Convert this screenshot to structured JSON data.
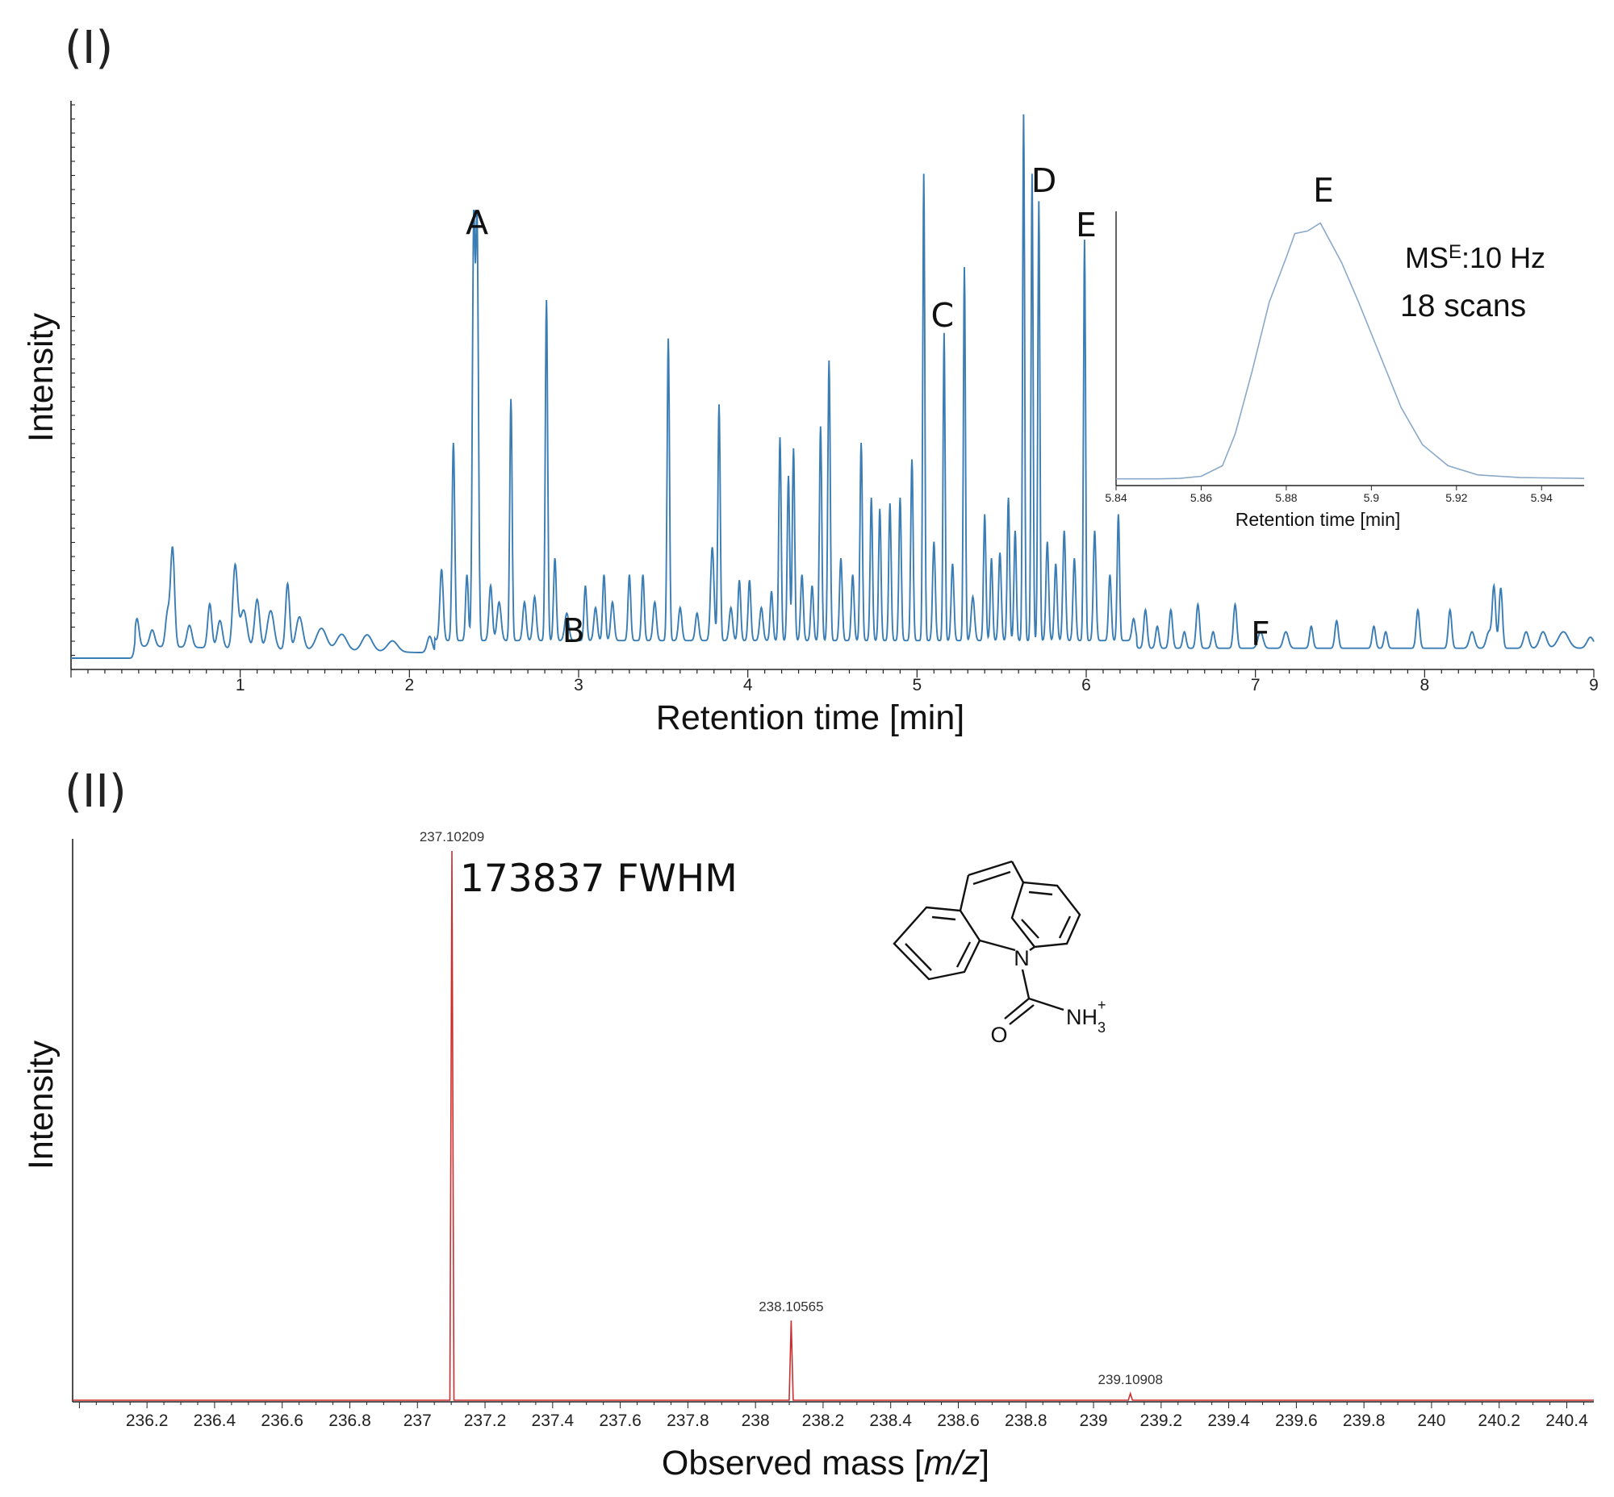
{
  "colors": {
    "chromatogram": "#3a7db5",
    "inset": "#8aa9c8",
    "spectrum": "#cc2e2e",
    "axis": "#222222"
  },
  "panel_1": {
    "label": "(I)"
  },
  "panel_2": {
    "label": "(II)"
  },
  "chart_data": [
    {
      "type": "line",
      "ylabel": "Intensity",
      "xlabel": "Retention time [min]",
      "xlim": [
        0,
        9
      ],
      "ylim": [
        0,
        100
      ],
      "x_ticks": [
        "1",
        "2",
        "3",
        "4",
        "5",
        "6",
        "7",
        "8",
        "9"
      ],
      "peak_labels": [
        {
          "text": "A",
          "x": 2.4
        },
        {
          "text": "B",
          "x": 2.97
        },
        {
          "text": "C",
          "x": 5.15
        },
        {
          "text": "D",
          "x": 5.75
        },
        {
          "text": "E",
          "x": 6.0
        },
        {
          "text": "F",
          "x": 7.03
        }
      ],
      "peaks": [
        [
          0.39,
          5,
          0.012
        ],
        [
          0.48,
          3,
          0.015
        ],
        [
          0.57,
          6,
          0.012
        ],
        [
          0.6,
          18,
          0.012
        ],
        [
          0.7,
          4,
          0.015
        ],
        [
          0.82,
          8,
          0.012
        ],
        [
          0.88,
          5,
          0.015
        ],
        [
          0.97,
          15,
          0.014
        ],
        [
          1.02,
          7,
          0.02
        ],
        [
          1.1,
          9,
          0.015
        ],
        [
          1.18,
          7,
          0.02
        ],
        [
          1.28,
          12,
          0.012
        ],
        [
          1.35,
          6,
          0.02
        ],
        [
          1.48,
          4,
          0.03
        ],
        [
          1.6,
          3,
          0.03
        ],
        [
          1.75,
          3,
          0.03
        ],
        [
          1.9,
          2,
          0.03
        ],
        [
          2.12,
          3,
          0.015
        ],
        [
          2.19,
          13,
          0.01
        ],
        [
          2.26,
          36,
          0.008
        ],
        [
          2.34,
          12,
          0.008
        ],
        [
          2.38,
          75,
          0.008
        ],
        [
          2.4,
          75,
          0.008
        ],
        [
          2.48,
          10,
          0.01
        ],
        [
          2.53,
          7,
          0.012
        ],
        [
          2.6,
          44,
          0.007
        ],
        [
          2.68,
          7,
          0.01
        ],
        [
          2.74,
          8,
          0.01
        ],
        [
          2.81,
          62,
          0.007
        ],
        [
          2.86,
          15,
          0.008
        ],
        [
          2.93,
          5,
          0.012
        ],
        [
          3.04,
          10,
          0.008
        ],
        [
          3.1,
          6,
          0.01
        ],
        [
          3.15,
          12,
          0.008
        ],
        [
          3.2,
          7,
          0.01
        ],
        [
          3.3,
          12,
          0.008
        ],
        [
          3.38,
          12,
          0.008
        ],
        [
          3.45,
          7,
          0.01
        ],
        [
          3.53,
          55,
          0.007
        ],
        [
          3.6,
          6,
          0.01
        ],
        [
          3.7,
          5,
          0.01
        ],
        [
          3.79,
          17,
          0.01
        ],
        [
          3.83,
          43,
          0.007
        ],
        [
          3.9,
          6,
          0.01
        ],
        [
          3.95,
          11,
          0.008
        ],
        [
          4.01,
          11,
          0.008
        ],
        [
          4.08,
          6,
          0.01
        ],
        [
          4.14,
          9,
          0.008
        ],
        [
          4.19,
          37,
          0.007
        ],
        [
          4.24,
          30,
          0.007
        ],
        [
          4.27,
          35,
          0.007
        ],
        [
          4.32,
          12,
          0.008
        ],
        [
          4.38,
          10,
          0.008
        ],
        [
          4.43,
          39,
          0.007
        ],
        [
          4.48,
          51,
          0.007
        ],
        [
          4.55,
          15,
          0.008
        ],
        [
          4.62,
          12,
          0.008
        ],
        [
          4.67,
          36,
          0.007
        ],
        [
          4.73,
          26,
          0.007
        ],
        [
          4.78,
          24,
          0.007
        ],
        [
          4.84,
          25,
          0.007
        ],
        [
          4.9,
          26,
          0.007
        ],
        [
          4.97,
          33,
          0.007
        ],
        [
          5.04,
          85,
          0.006
        ],
        [
          5.1,
          18,
          0.008
        ],
        [
          5.16,
          56,
          0.006
        ],
        [
          5.21,
          14,
          0.008
        ],
        [
          5.28,
          68,
          0.006
        ],
        [
          5.33,
          8,
          0.01
        ],
        [
          5.4,
          23,
          0.007
        ],
        [
          5.44,
          15,
          0.007
        ],
        [
          5.49,
          16,
          0.008
        ],
        [
          5.54,
          26,
          0.007
        ],
        [
          5.58,
          20,
          0.007
        ],
        [
          5.63,
          96,
          0.006
        ],
        [
          5.68,
          85,
          0.006
        ],
        [
          5.72,
          80,
          0.006
        ],
        [
          5.77,
          18,
          0.008
        ],
        [
          5.82,
          14,
          0.008
        ],
        [
          5.87,
          20,
          0.008
        ],
        [
          5.93,
          15,
          0.008
        ],
        [
          5.99,
          73,
          0.006
        ],
        [
          6.05,
          20,
          0.008
        ],
        [
          6.14,
          12,
          0.008
        ],
        [
          6.19,
          23,
          0.007
        ],
        [
          6.28,
          4,
          0.01
        ],
        [
          6.35,
          7,
          0.01
        ],
        [
          6.42,
          4,
          0.01
        ],
        [
          6.5,
          7,
          0.01
        ],
        [
          6.58,
          3,
          0.01
        ],
        [
          6.66,
          8,
          0.01
        ],
        [
          6.75,
          3,
          0.01
        ],
        [
          6.88,
          8,
          0.01
        ],
        [
          7.03,
          3,
          0.015
        ],
        [
          7.18,
          3,
          0.015
        ],
        [
          7.33,
          4,
          0.01
        ],
        [
          7.48,
          5,
          0.01
        ],
        [
          7.7,
          4,
          0.01
        ],
        [
          7.77,
          3,
          0.01
        ],
        [
          7.96,
          7,
          0.01
        ],
        [
          8.15,
          7,
          0.01
        ],
        [
          8.28,
          3,
          0.015
        ],
        [
          8.38,
          3,
          0.015
        ],
        [
          8.41,
          11,
          0.01
        ],
        [
          8.45,
          11,
          0.01
        ],
        [
          8.6,
          3,
          0.015
        ],
        [
          8.7,
          3,
          0.02
        ],
        [
          8.82,
          3,
          0.03
        ],
        [
          8.98,
          2,
          0.02
        ]
      ]
    },
    {
      "type": "line",
      "title": "E",
      "xlabel": "Retention time [min]",
      "xlim": [
        5.84,
        5.95
      ],
      "ylim": [
        0,
        100
      ],
      "x_ticks": [
        "5.84",
        "5.86",
        "5.88",
        "5.9",
        "5.92",
        "5.94"
      ],
      "x": [
        5.84,
        5.85,
        5.855,
        5.86,
        5.865,
        5.868,
        5.872,
        5.876,
        5.88,
        5.882,
        5.885,
        5.888,
        5.893,
        5.897,
        5.902,
        5.907,
        5.912,
        5.918,
        5.925,
        5.935,
        5.95
      ],
      "y": [
        1,
        1,
        1.2,
        2,
        6,
        18,
        42,
        68,
        85,
        94,
        95,
        98,
        83,
        68,
        48,
        28,
        14,
        6,
        2.5,
        1.5,
        1.2
      ],
      "annotations": {
        "rate_main": "MS",
        "rate_sup": "E",
        "rate_rest": ":10 Hz",
        "scans": "18 scans"
      }
    },
    {
      "type": "line",
      "ylabel": "Intensity",
      "xlabel_prefix": "Observed mass [",
      "xlabel_italic": "m/z",
      "xlabel_suffix": "]",
      "xlim": [
        235.98,
        240.48
      ],
      "ylim": [
        0,
        100
      ],
      "x_ticks": [
        "236.2",
        "236.4",
        "236.6",
        "236.8",
        "237",
        "237.2",
        "237.4",
        "237.6",
        "237.8",
        "238",
        "238.2",
        "238.4",
        "238.6",
        "238.8",
        "239",
        "239.2",
        "239.4",
        "239.6",
        "239.8",
        "240",
        "240.2",
        "240.4"
      ],
      "peaks": [
        {
          "mz": 237.10209,
          "intensity": 100,
          "label": "237.10209"
        },
        {
          "mz": 238.10565,
          "intensity": 14.5,
          "label": "238.10565"
        },
        {
          "mz": 239.10908,
          "intensity": 1.2,
          "label": "239.10908"
        }
      ],
      "resolution_label": "173837 FWHM"
    }
  ],
  "structure": {
    "atom_n": "N",
    "atom_o": "O",
    "group_nh": "NH",
    "sub_3": "3",
    "sup_plus": "+"
  }
}
